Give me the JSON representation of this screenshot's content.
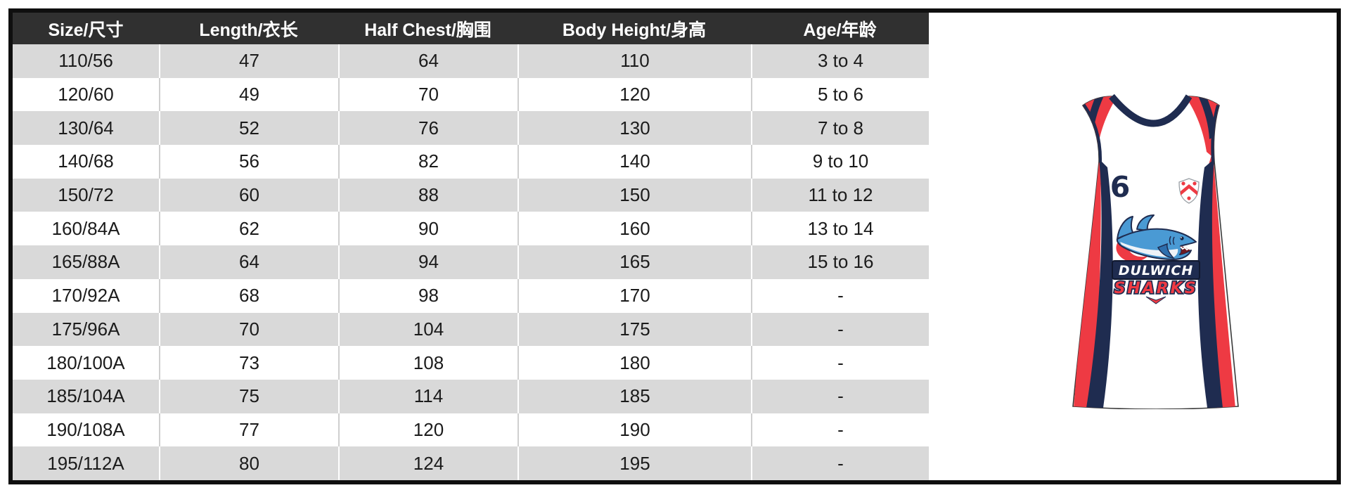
{
  "table": {
    "columns": [
      {
        "key": "size",
        "label": "Size/尺寸"
      },
      {
        "key": "length",
        "label": "Length/衣长"
      },
      {
        "key": "half_chest",
        "label": "Half Chest/胸围"
      },
      {
        "key": "body_height",
        "label": "Body Height/身高"
      },
      {
        "key": "age",
        "label": "Age/年龄"
      }
    ],
    "rows": [
      [
        "110/56",
        "47",
        "64",
        "110",
        "3 to 4"
      ],
      [
        "120/60",
        "49",
        "70",
        "120",
        "5 to 6"
      ],
      [
        "130/64",
        "52",
        "76",
        "130",
        "7 to 8"
      ],
      [
        "140/68",
        "56",
        "82",
        "140",
        "9 to 10"
      ],
      [
        "150/72",
        "60",
        "88",
        "150",
        "11 to 12"
      ],
      [
        "160/84A",
        "62",
        "90",
        "160",
        "13 to 14"
      ],
      [
        "165/88A",
        "64",
        "94",
        "165",
        "15 to 16"
      ],
      [
        "170/92A",
        "68",
        "98",
        "170",
        "-"
      ],
      [
        "175/96A",
        "70",
        "104",
        "175",
        "-"
      ],
      [
        "180/100A",
        "73",
        "108",
        "180",
        "-"
      ],
      [
        "185/104A",
        "75",
        "114",
        "185",
        "-"
      ],
      [
        "190/108A",
        "77",
        "120",
        "190",
        "-"
      ],
      [
        "195/112A",
        "80",
        "124",
        "195",
        "-"
      ]
    ]
  },
  "jersey": {
    "number": "6",
    "team_line1": "DULWICH",
    "team_line2": "SHARKS",
    "crest": "school-crest",
    "logo": "shark-mascot"
  },
  "colors": {
    "header_bg": "#303030",
    "row_alt_bg": "#d9d9d9",
    "row_bg": "#ffffff",
    "frame_border": "#0f0f0f",
    "jersey_navy": "#1f2c50",
    "jersey_red": "#ee3a43",
    "shark_blue": "#4a9ad4"
  }
}
